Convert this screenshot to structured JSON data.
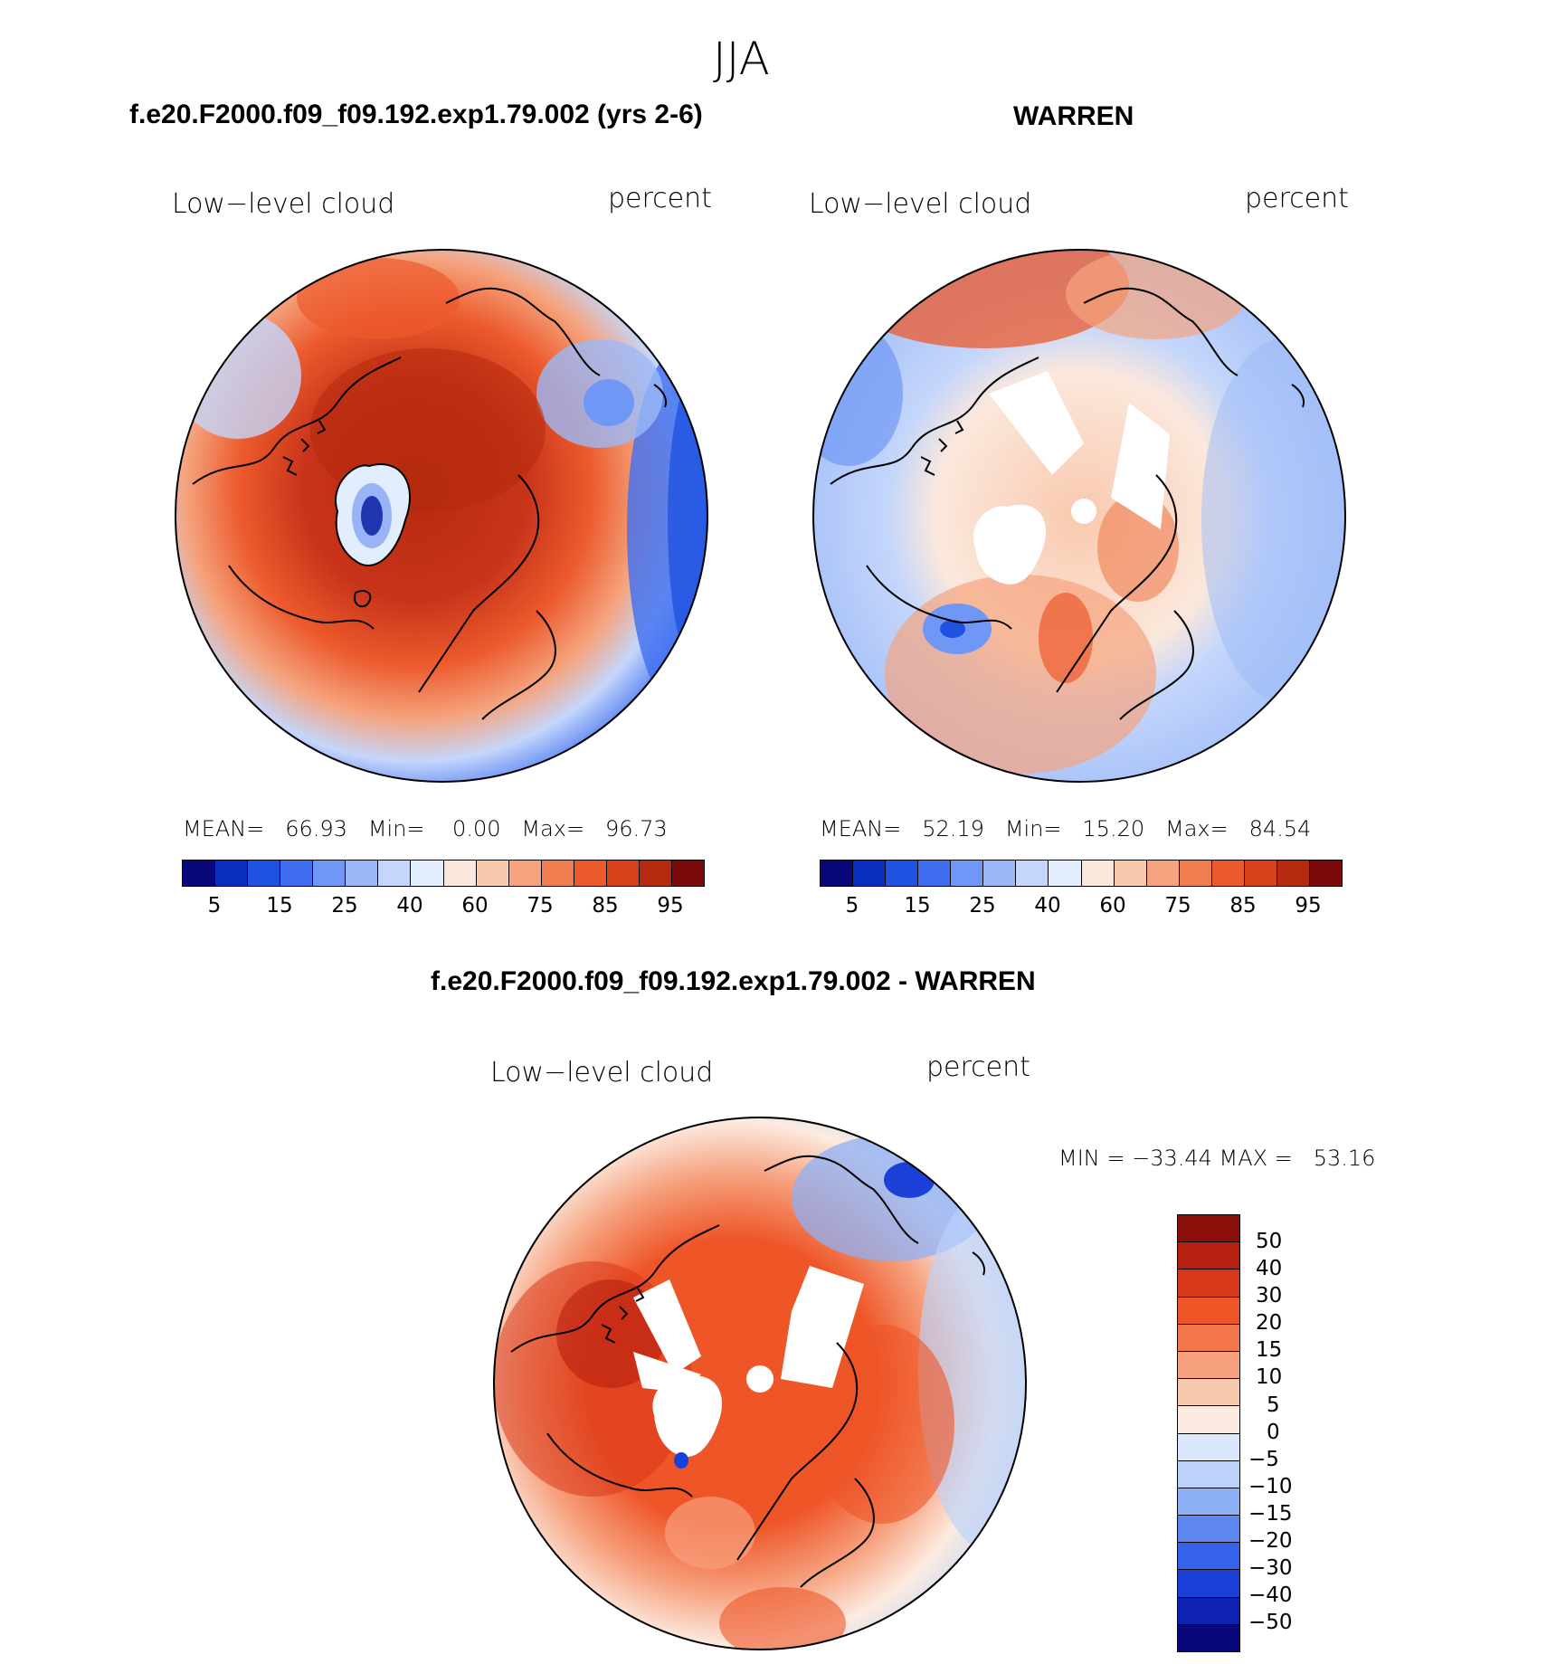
{
  "figure": {
    "season": "JJA",
    "top_left_title": "f.e20.F2000.f09_f09.192.exp1.79.002 (yrs 2-6)",
    "top_right_title": "WARREN",
    "bottom_title": "f.e20.F2000.f09_f09.192.exp1.79.002 - WARREN"
  },
  "panels": [
    {
      "variable": "Low−level cloud",
      "units": "percent",
      "stats_text": "MEAN=   66.93   Min=    0.00   Max=   96.73",
      "stats": {
        "mean": 66.93,
        "min": 0.0,
        "max": 96.73
      }
    },
    {
      "variable": "Low−level cloud",
      "units": "percent",
      "stats_text": "MEAN=   52.19   Min=   15.20   Max=   84.54",
      "stats": {
        "mean": 52.19,
        "min": 15.2,
        "max": 84.54
      }
    },
    {
      "variable": "Low−level cloud",
      "units": "percent",
      "stats_text": "MIN = −33.44 MAX =   53.16",
      "stats": {
        "min": -33.44,
        "max": 53.16
      }
    }
  ],
  "legend_abs": {
    "tick_labels": [
      "5",
      "15",
      "25",
      "40",
      "60",
      "75",
      "85",
      "95"
    ],
    "colors": [
      "#08087a",
      "#0a2fc0",
      "#1f52e0",
      "#3f6ff0",
      "#6f97f5",
      "#9bb9f7",
      "#c4d6fb",
      "#e2edfd",
      "#fbe8dc",
      "#f9c9ae",
      "#f5a47f",
      "#f07d50",
      "#ec5a2c",
      "#d8411a",
      "#b52a0f",
      "#7a0a0a"
    ]
  },
  "legend_diff": {
    "tick_labels": [
      "50",
      "40",
      "30",
      "20",
      "15",
      "10",
      "5",
      "0",
      "−5",
      "−10",
      "−15",
      "−20",
      "−30",
      "−40",
      "−50"
    ],
    "colors": [
      "#8a0f0b",
      "#b8200f",
      "#d8381a",
      "#ee5527",
      "#f3774a",
      "#f6a07d",
      "#f9c9ae",
      "#fcebe0",
      "#dbe8fc",
      "#bcd2fa",
      "#8eb0f5",
      "#5d86ef",
      "#3563ea",
      "#1a40d8",
      "#0d22b0",
      "#08087a"
    ]
  },
  "chart_data": [
    {
      "type": "heatmap",
      "projection": "north polar stereographic",
      "title": "Low−level cloud",
      "units": "percent",
      "levels": [
        5,
        10,
        15,
        20,
        25,
        30,
        40,
        50,
        60,
        70,
        75,
        80,
        85,
        90,
        95
      ],
      "stats": {
        "mean": 66.93,
        "min": 0.0,
        "max": 96.73
      }
    },
    {
      "type": "heatmap",
      "projection": "north polar stereographic",
      "title": "Low−level cloud",
      "units": "percent",
      "levels": [
        5,
        10,
        15,
        20,
        25,
        30,
        40,
        50,
        60,
        70,
        75,
        80,
        85,
        90,
        95
      ],
      "stats": {
        "mean": 52.19,
        "min": 15.2,
        "max": 84.54
      }
    },
    {
      "type": "heatmap",
      "projection": "north polar stereographic",
      "title": "Low−level cloud",
      "units": "percent",
      "levels": [
        -50,
        -40,
        -30,
        -20,
        -15,
        -10,
        -5,
        0,
        5,
        10,
        15,
        20,
        30,
        40,
        50
      ],
      "stats": {
        "min": -33.44,
        "max": 53.16
      }
    }
  ]
}
